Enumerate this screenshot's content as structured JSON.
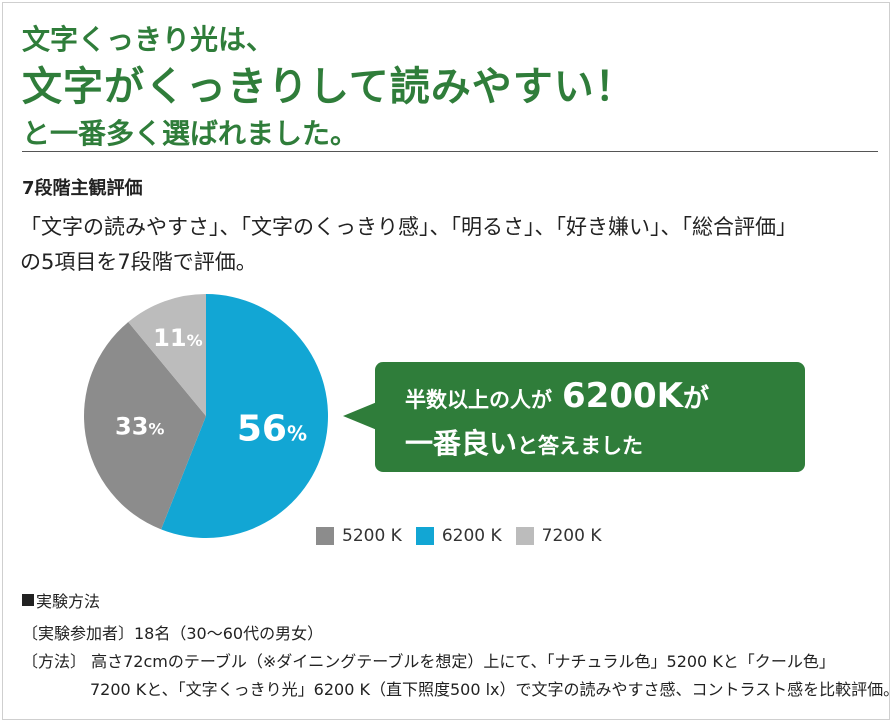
{
  "headline": {
    "line1": "文字くっきり光は、",
    "line2": "文字がくっきりして読みやすい！",
    "line3": "と一番多く選ばれました。"
  },
  "subhead": "7段階主観評価",
  "description": {
    "line1": "「文字の読みやすさ」、「文字のくっきり感」、「明るさ」、「好き嫌い」、「総合評価」",
    "line2": "の5項目を7段階で評価。"
  },
  "chart_data": {
    "type": "pie",
    "categories": [
      "5200K",
      "6200K",
      "7200K"
    ],
    "values": [
      33,
      56,
      11
    ],
    "value_labels": [
      {
        "num": "33",
        "unit": "%"
      },
      {
        "num": "56",
        "unit": "%"
      },
      {
        "num": "11",
        "unit": "%"
      }
    ],
    "colors": [
      "#8c8c8c",
      "#12a6d4",
      "#bcbcbc"
    ],
    "legend_placement": "bottom-right"
  },
  "legend": [
    {
      "label": "5200 K",
      "color": "#8c8c8c"
    },
    {
      "label": "6200 K",
      "color": "#12a6d4"
    },
    {
      "label": "7200 K",
      "color": "#bcbcbc"
    }
  ],
  "callout": {
    "line1_a": "半数以上の人が",
    "line1_b": "6200K",
    "line1_c": "が",
    "line2_a": "一番良い",
    "line2_b": "と答えました",
    "color": "#2f7d3a"
  },
  "method": {
    "title": "実験方法",
    "line1": "〔実験参加者〕18名（30〜60代の男女）",
    "line2": "〔方法〕 高さ72cmのテーブル（※ダイニングテーブルを想定）上にて、「ナチュラル色」5200 Kと「クール色」",
    "line3": "7200 Kと、「文字くっきり光」6200 K（直下照度500 lx）で文字の読みやすさ感、コントラスト感を比較評価。"
  },
  "colors": {
    "accent_green": "#2f7d3a",
    "blue": "#12a6d4"
  }
}
